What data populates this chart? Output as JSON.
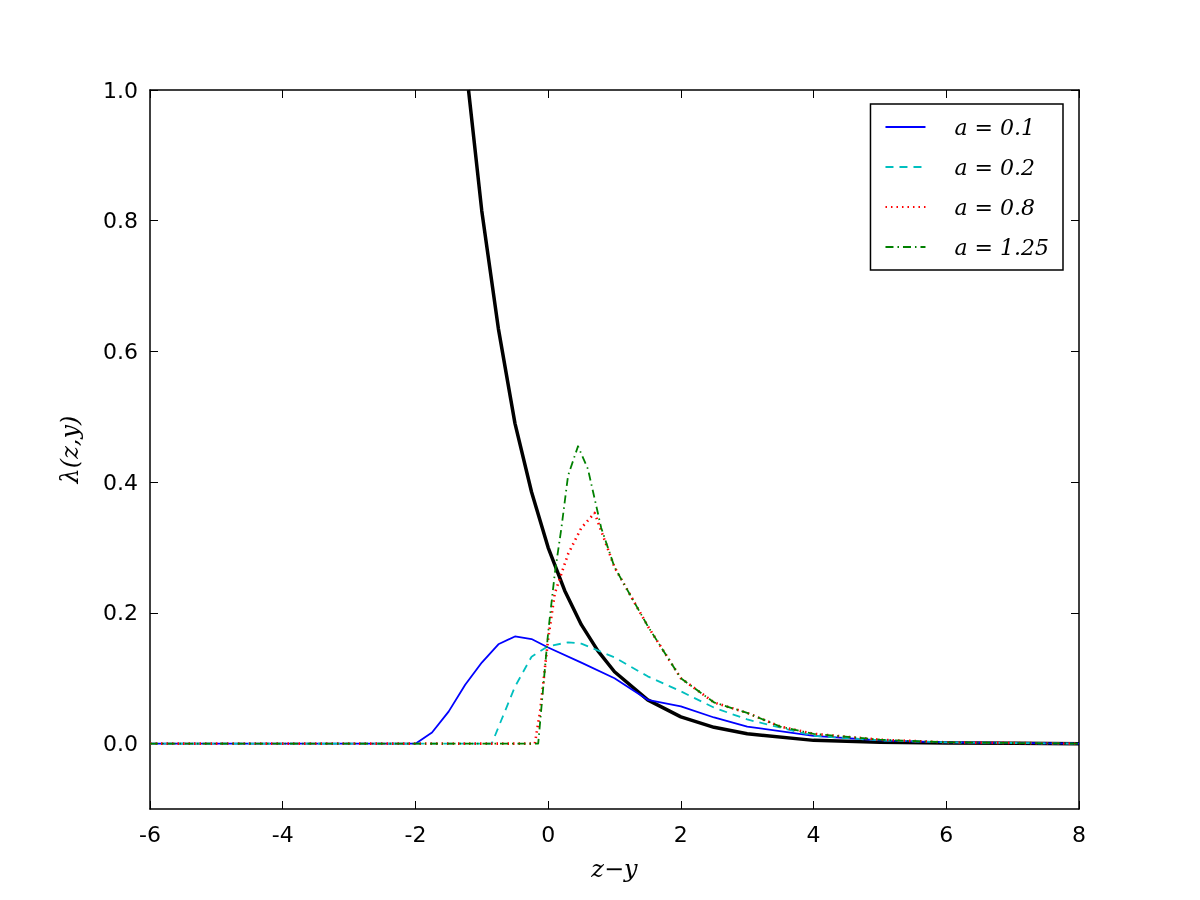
{
  "chart_data": {
    "type": "line",
    "xlabel": "z−y",
    "ylabel": "λ(z,y)",
    "xlim": [
      -6,
      8
    ],
    "xticks": [
      -6,
      -4,
      -2,
      0,
      2,
      4,
      6,
      8
    ],
    "ylim": [
      -0.1,
      1.0
    ],
    "yticks": [
      {
        "value": 0,
        "label": "0.0"
      },
      {
        "value": 0.2,
        "label": "0.2"
      },
      {
        "value": 0.4,
        "label": "0.4"
      },
      {
        "value": 0.6,
        "label": "0.6"
      },
      {
        "value": 0.8,
        "label": "0.8"
      },
      {
        "value": 1.0,
        "label": "1.0"
      }
    ],
    "grid": false,
    "legend": "top right",
    "marker": "none",
    "series": [
      {
        "name": "a = 0.1",
        "color": "#0000ff",
        "line_style": "solid",
        "x": [
          -6,
          -4,
          -2,
          -1.75,
          -1.5,
          -1.25,
          -1,
          -0.75,
          -0.5,
          -0.25,
          0,
          0.5,
          1,
          1.5,
          2,
          2.5,
          3,
          4,
          5,
          6,
          7,
          8
        ],
        "values": [
          0,
          0,
          0,
          0.017,
          0.049,
          0.09,
          0.124,
          0.152,
          0.164,
          0.16,
          0.147,
          0.124,
          0.1,
          0.067,
          0.057,
          0.04,
          0.026,
          0.012,
          0.005,
          0.002,
          0.001,
          0
        ]
      },
      {
        "name": "a = 0.2",
        "color": "#00bfbf",
        "line_style": "dashed",
        "x": [
          -6,
          -4,
          -2,
          -0.85,
          -0.5,
          -0.25,
          0,
          0.3,
          0.5,
          1,
          1.5,
          2,
          2.5,
          3,
          4,
          5,
          6,
          7,
          8
        ],
        "values": [
          0,
          0,
          0,
          0,
          0.087,
          0.133,
          0.149,
          0.155,
          0.153,
          0.132,
          0.103,
          0.08,
          0.055,
          0.037,
          0.012,
          0.005,
          0.002,
          0.001,
          0
        ]
      },
      {
        "name": "a = 0.8",
        "color": "#ff0000",
        "line_style": "dotted",
        "x": [
          -6,
          -4,
          -2,
          -0.2,
          -0.12,
          0,
          0.1,
          0.3,
          0.5,
          0.7,
          1,
          1.5,
          2,
          2.5,
          3,
          3.5,
          4,
          5,
          6,
          7,
          8
        ],
        "values": [
          0,
          0,
          0,
          0,
          0.05,
          0.16,
          0.23,
          0.29,
          0.33,
          0.353,
          0.27,
          0.18,
          0.1,
          0.063,
          0.047,
          0.026,
          0.015,
          0.006,
          0.002,
          0.001,
          0
        ]
      },
      {
        "name": "a = 1.25",
        "color": "#008000",
        "line_style": "dashdot",
        "x": [
          -6,
          -4,
          -2,
          -0.15,
          0,
          0.1,
          0.2,
          0.3,
          0.45,
          0.6,
          0.8,
          1,
          1.5,
          2,
          2.5,
          3,
          3.5,
          4,
          5,
          6,
          7,
          8
        ],
        "values": [
          0,
          0,
          0,
          0,
          0.17,
          0.26,
          0.33,
          0.41,
          0.455,
          0.42,
          0.33,
          0.27,
          0.18,
          0.1,
          0.063,
          0.047,
          0.026,
          0.015,
          0.006,
          0.002,
          0.001,
          0
        ]
      },
      {
        "color": "#000000",
        "line_style": "solid",
        "x": [
          -1.2,
          -1,
          -0.75,
          -0.5,
          -0.25,
          0,
          0.25,
          0.5,
          0.75,
          1,
          1.5,
          2,
          2.5,
          3,
          4,
          5,
          6,
          8
        ],
        "values": [
          1.0,
          0.815,
          0.635,
          0.49,
          0.385,
          0.3,
          0.234,
          0.182,
          0.142,
          0.11,
          0.067,
          0.041,
          0.025,
          0.015,
          0.005,
          0.002,
          0.001,
          0
        ]
      }
    ]
  }
}
